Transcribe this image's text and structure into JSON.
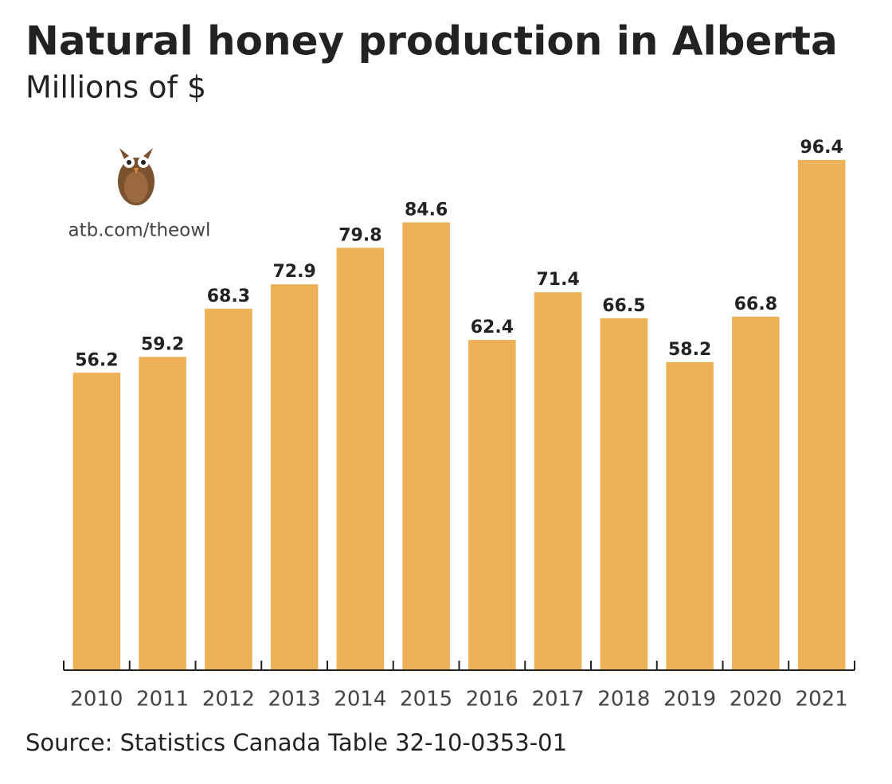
{
  "chart_data": {
    "type": "bar",
    "title": "Natural honey production in Alberta",
    "subtitle": "Millions of $",
    "source": "Source: Statistics Canada Table 32-10-0353-01",
    "annotations": [
      "atb.com/theowl"
    ],
    "categories": [
      "2010",
      "2011",
      "2012",
      "2013",
      "2014",
      "2015",
      "2016",
      "2017",
      "2018",
      "2019",
      "2020",
      "2021"
    ],
    "values": [
      56.2,
      59.2,
      68.3,
      72.9,
      79.8,
      84.6,
      62.4,
      71.4,
      66.5,
      58.2,
      66.8,
      96.4
    ],
    "color": "#edb258",
    "ylim": [
      0,
      100
    ]
  }
}
